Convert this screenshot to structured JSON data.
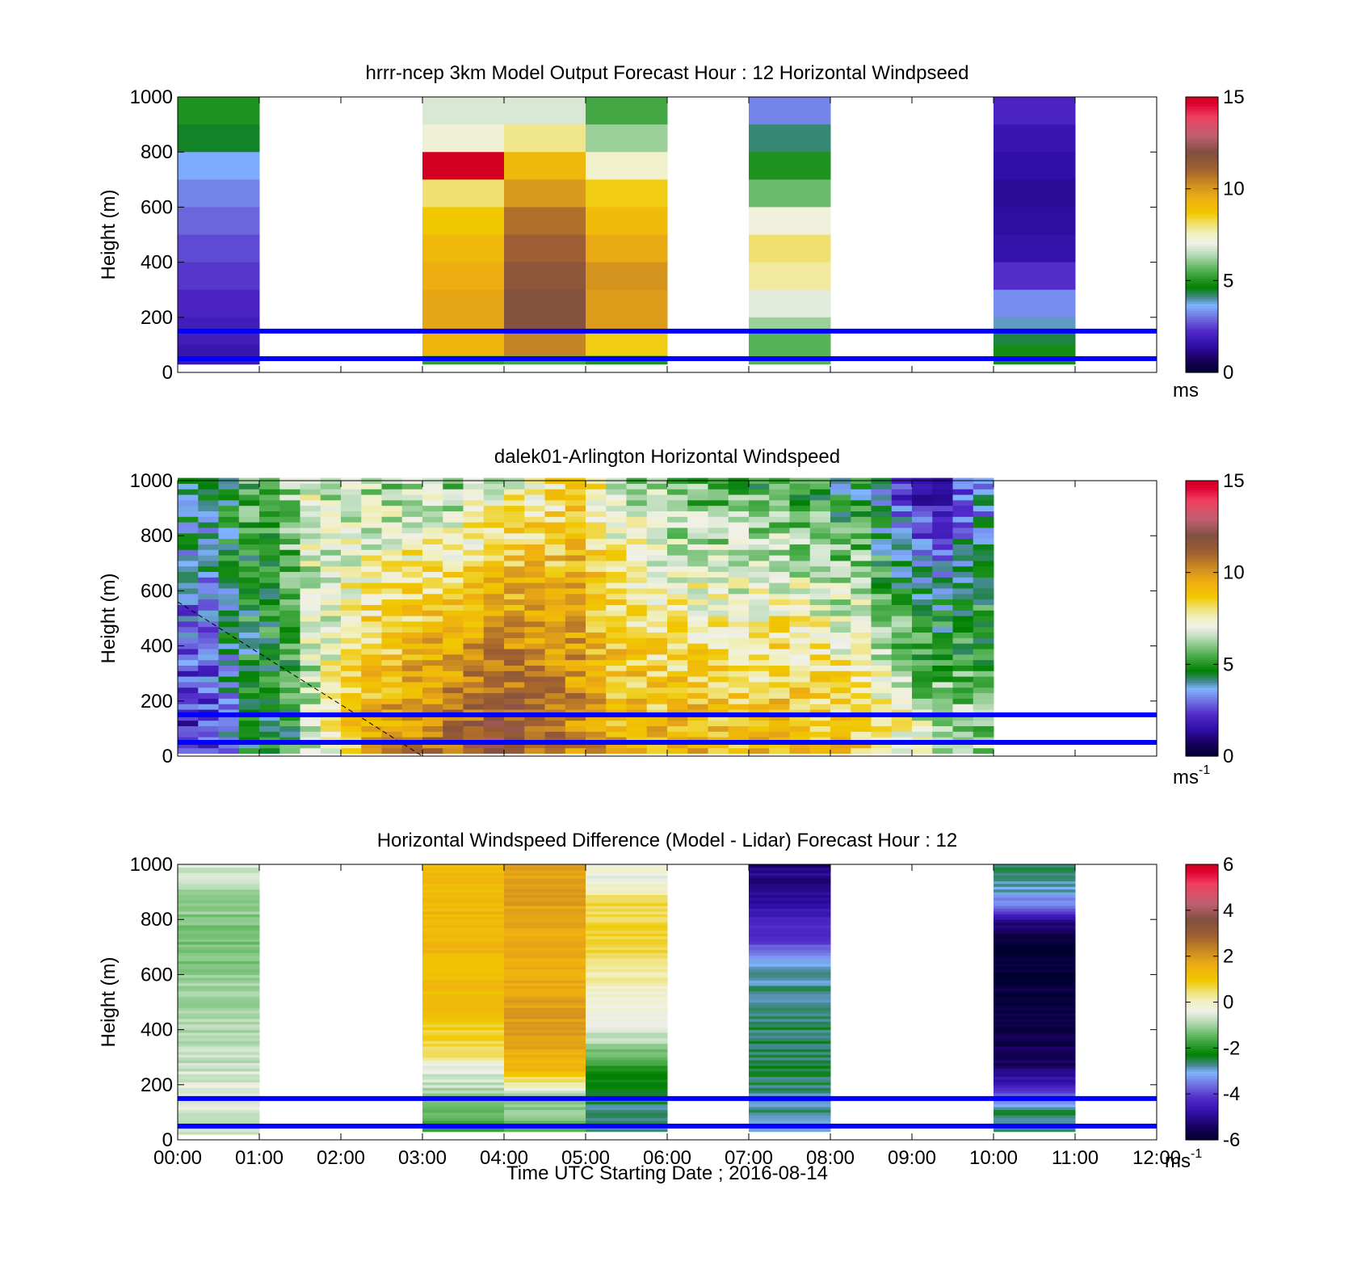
{
  "figure": {
    "x_tick_labels": [
      "00:00",
      "01:00",
      "02:00",
      "03:00",
      "04:00",
      "05:00",
      "06:00",
      "07:00",
      "08:00",
      "09:00",
      "10:00",
      "11:00",
      "12:00"
    ],
    "x_label": "Time UTC  Starting Date ; 2016-08-14",
    "y_label": "Height (m)",
    "y_tick_labels": [
      "0",
      "200",
      "400",
      "600",
      "800",
      "1000"
    ],
    "reference_line_color": "#0000ff"
  },
  "chart_data": [
    {
      "type": "heatmap",
      "title": "hrrr-ncep 3km Model Output   Forecast Hour : 12 Horizontal Windpseed",
      "xlabel": "",
      "ylabel": "Height (m)",
      "xlim": [
        "00:00",
        "12:00"
      ],
      "ylim": [
        0,
        1000
      ],
      "colorbar": {
        "min": 0,
        "max": 15,
        "ticks": [
          "0",
          "5",
          "10",
          "15"
        ],
        "unit": "ms",
        "unit_sup": "",
        "colormap": "windspeed"
      },
      "reference_lines_m": [
        150,
        50
      ],
      "grid": false,
      "columns": [
        {
          "start_hour": 0,
          "end_hour": 1,
          "bottom_m": 30,
          "levels": [
            {
              "top_m": 1000,
              "value": 5.0
            },
            {
              "top_m": 900,
              "value": 4.5
            },
            {
              "top_m": 800,
              "value": 3.6
            },
            {
              "top_m": 700,
              "value": 3.2
            },
            {
              "top_m": 600,
              "value": 2.9
            },
            {
              "top_m": 500,
              "value": 2.6
            },
            {
              "top_m": 400,
              "value": 2.4
            },
            {
              "top_m": 300,
              "value": 2.1
            },
            {
              "top_m": 200,
              "value": 1.9
            },
            {
              "top_m": 100,
              "value": 1.7
            }
          ]
        },
        {
          "start_hour": 3,
          "end_hour": 4,
          "bottom_m": 30,
          "levels": [
            {
              "top_m": 1000,
              "value": 6.8
            },
            {
              "top_m": 900,
              "value": 7.3
            },
            {
              "top_m": 800,
              "value": 14.9
            },
            {
              "top_m": 700,
              "value": 8.1
            },
            {
              "top_m": 600,
              "value": 8.7
            },
            {
              "top_m": 500,
              "value": 9.2
            },
            {
              "top_m": 400,
              "value": 9.5
            },
            {
              "top_m": 300,
              "value": 9.7
            },
            {
              "top_m": 150,
              "value": 9.3
            },
            {
              "top_m": 60,
              "value": 5.2
            }
          ]
        },
        {
          "start_hour": 4,
          "end_hour": 5,
          "bottom_m": 30,
          "levels": [
            {
              "top_m": 1000,
              "value": 6.8
            },
            {
              "top_m": 900,
              "value": 7.9
            },
            {
              "top_m": 800,
              "value": 9.2
            },
            {
              "top_m": 700,
              "value": 10.0
            },
            {
              "top_m": 600,
              "value": 10.8
            },
            {
              "top_m": 500,
              "value": 11.2
            },
            {
              "top_m": 400,
              "value": 11.6
            },
            {
              "top_m": 300,
              "value": 11.9
            },
            {
              "top_m": 150,
              "value": 10.4
            },
            {
              "top_m": 60,
              "value": 5.4
            }
          ]
        },
        {
          "start_hour": 5,
          "end_hour": 6,
          "bottom_m": 30,
          "levels": [
            {
              "top_m": 1000,
              "value": 5.4
            },
            {
              "top_m": 900,
              "value": 6.2
            },
            {
              "top_m": 800,
              "value": 7.4
            },
            {
              "top_m": 700,
              "value": 8.6
            },
            {
              "top_m": 600,
              "value": 9.1
            },
            {
              "top_m": 500,
              "value": 9.6
            },
            {
              "top_m": 400,
              "value": 10.1
            },
            {
              "top_m": 300,
              "value": 9.9
            },
            {
              "top_m": 150,
              "value": 8.6
            },
            {
              "top_m": 60,
              "value": 5.0
            }
          ]
        },
        {
          "start_hour": 7,
          "end_hour": 8,
          "bottom_m": 30,
          "levels": [
            {
              "top_m": 1000,
              "value": 3.2
            },
            {
              "top_m": 900,
              "value": 4.2
            },
            {
              "top_m": 800,
              "value": 5.0
            },
            {
              "top_m": 700,
              "value": 5.8
            },
            {
              "top_m": 600,
              "value": 7.2
            },
            {
              "top_m": 500,
              "value": 8.1
            },
            {
              "top_m": 400,
              "value": 7.8
            },
            {
              "top_m": 300,
              "value": 6.9
            },
            {
              "top_m": 200,
              "value": 6.2
            },
            {
              "top_m": 150,
              "value": 5.6
            }
          ]
        },
        {
          "start_hour": 10,
          "end_hour": 11,
          "bottom_m": 30,
          "levels": [
            {
              "top_m": 1000,
              "value": 2.1
            },
            {
              "top_m": 900,
              "value": 1.7
            },
            {
              "top_m": 800,
              "value": 1.5
            },
            {
              "top_m": 700,
              "value": 1.3
            },
            {
              "top_m": 600,
              "value": 1.4
            },
            {
              "top_m": 500,
              "value": 1.6
            },
            {
              "top_m": 400,
              "value": 2.3
            },
            {
              "top_m": 300,
              "value": 3.3
            },
            {
              "top_m": 200,
              "value": 3.9
            },
            {
              "top_m": 150,
              "value": 4.4
            },
            {
              "top_m": 100,
              "value": 4.9
            }
          ]
        }
      ]
    },
    {
      "type": "heatmap",
      "title": "dalek01-Arlington  Horizontal Windspeed",
      "xlabel": "",
      "ylabel": "Height (m)",
      "xlim": [
        "00:00",
        "12:00"
      ],
      "ylim": [
        0,
        1000
      ],
      "colorbar": {
        "min": 0,
        "max": 15,
        "ticks": [
          "0",
          "5",
          "10",
          "15"
        ],
        "unit": "ms",
        "unit_sup": "-1",
        "colormap": "windspeed"
      },
      "reference_lines_m": [
        150,
        50
      ],
      "grid": false,
      "time_step_hours": 0.25,
      "height_step_m": 20,
      "bottom_m": 10,
      "column_profiles": [
        {
          "bottom": 2.0,
          "top": 4.5
        },
        {
          "bottom": 2.3,
          "top": 4.6
        },
        {
          "bottom": 3.5,
          "top": 5.0
        },
        {
          "bottom": 4.4,
          "top": 5.4
        },
        {
          "bottom": 4.6,
          "top": 5.6
        },
        {
          "bottom": 5.0,
          "top": 6.2
        },
        {
          "bottom": 6.6,
          "top": 6.9
        },
        {
          "bottom": 7.6,
          "top": 6.4
        },
        {
          "bottom": 8.8,
          "top": 6.5
        },
        {
          "bottom": 9.6,
          "top": 6.2
        },
        {
          "bottom": 10.1,
          "top": 6.0
        },
        {
          "bottom": 10.4,
          "top": 6.4
        },
        {
          "bottom": 10.8,
          "top": 6.2
        },
        {
          "bottom": 11.1,
          "top": 6.0
        },
        {
          "bottom": 11.4,
          "top": 6.6
        },
        {
          "bottom": 11.7,
          "top": 6.9
        },
        {
          "bottom": 11.6,
          "top": 7.3
        },
        {
          "bottom": 11.2,
          "top": 7.6
        },
        {
          "bottom": 10.8,
          "top": 7.9
        },
        {
          "bottom": 10.4,
          "top": 8.5
        },
        {
          "bottom": 9.9,
          "top": 7.6
        },
        {
          "bottom": 9.5,
          "top": 6.9
        },
        {
          "bottom": 9.4,
          "top": 6.3
        },
        {
          "bottom": 9.2,
          "top": 6.1
        },
        {
          "bottom": 9.3,
          "top": 5.7
        },
        {
          "bottom": 9.4,
          "top": 5.5
        },
        {
          "bottom": 9.1,
          "top": 5.4
        },
        {
          "bottom": 9.0,
          "top": 5.3
        },
        {
          "bottom": 9.1,
          "top": 5.2
        },
        {
          "bottom": 9.3,
          "top": 5.4
        },
        {
          "bottom": 9.2,
          "top": 5.0
        },
        {
          "bottom": 9.0,
          "top": 4.9
        },
        {
          "bottom": 8.9,
          "top": 4.3
        },
        {
          "bottom": 8.6,
          "top": 4.5
        },
        {
          "bottom": 8.1,
          "top": 3.3
        },
        {
          "bottom": 7.7,
          "top": 2.1
        },
        {
          "bottom": 7.2,
          "top": 1.3
        },
        {
          "bottom": 6.8,
          "top": 1.6
        },
        {
          "bottom": 6.5,
          "top": 2.6
        },
        {
          "bottom": 6.3,
          "top": 3.1
        }
      ],
      "artifact_line": {
        "start": {
          "hour": 0.0,
          "height_m": 560
        },
        "end": {
          "hour": 3.0,
          "height_m": 0
        }
      }
    },
    {
      "type": "heatmap",
      "title": "Horizontal Windspeed Difference (Model - Lidar) Forecast Hour : 12",
      "xlabel": "Time UTC  Starting Date ; 2016-08-14",
      "ylabel": "Height (m)",
      "xlim": [
        "00:00",
        "12:00"
      ],
      "ylim": [
        0,
        1000
      ],
      "colorbar": {
        "min": -6,
        "max": 6,
        "ticks": [
          "-6",
          "-4",
          "-2",
          "0",
          "2",
          "4",
          "6"
        ],
        "unit": "ms",
        "unit_sup": "-1",
        "colormap": "difference"
      },
      "reference_lines_m": [
        150,
        50
      ],
      "grid": false,
      "height_step_m": 10,
      "columns": [
        {
          "start_hour": 0,
          "end_hour": 1,
          "bottom_m": 20,
          "profile": [
            [
              20,
              -0.7
            ],
            [
              150,
              -0.4
            ],
            [
              300,
              -0.8
            ],
            [
              500,
              -1.0
            ],
            [
              700,
              -1.3
            ],
            [
              900,
              -1.0
            ],
            [
              1000,
              -0.5
            ]
          ]
        },
        {
          "start_hour": 3,
          "end_hour": 4,
          "bottom_m": 30,
          "profile": [
            [
              30,
              -2.0
            ],
            [
              150,
              -1.0
            ],
            [
              250,
              -0.5
            ],
            [
              300,
              0.5
            ],
            [
              450,
              1.1
            ],
            [
              700,
              1.4
            ],
            [
              900,
              1.3
            ],
            [
              1000,
              1.2
            ]
          ]
        },
        {
          "start_hour": 4,
          "end_hour": 5,
          "bottom_m": 30,
          "profile": [
            [
              30,
              -1.5
            ],
            [
              150,
              -1.0
            ],
            [
              200,
              0.2
            ],
            [
              250,
              1.3
            ],
            [
              400,
              2.0
            ],
            [
              600,
              1.6
            ],
            [
              800,
              1.8
            ],
            [
              1000,
              1.9
            ]
          ]
        },
        {
          "start_hour": 5,
          "end_hour": 6,
          "bottom_m": 30,
          "profile": [
            [
              30,
              -2.8
            ],
            [
              150,
              -2.6
            ],
            [
              250,
              -2.0
            ],
            [
              350,
              -0.8
            ],
            [
              600,
              0.2
            ],
            [
              700,
              0.8
            ],
            [
              850,
              0.6
            ],
            [
              950,
              -0.3
            ],
            [
              1000,
              -0.2
            ]
          ]
        },
        {
          "start_hour": 7,
          "end_hour": 8,
          "bottom_m": 30,
          "profile": [
            [
              30,
              -2.9
            ],
            [
              250,
              -2.5
            ],
            [
              400,
              -2.6
            ],
            [
              600,
              -2.8
            ],
            [
              680,
              -3.6
            ],
            [
              750,
              -4.2
            ],
            [
              820,
              -4.6
            ],
            [
              900,
              -5.0
            ],
            [
              1000,
              -5.2
            ]
          ]
        },
        {
          "start_hour": 10,
          "end_hour": 11,
          "bottom_m": 30,
          "profile": [
            [
              30,
              -2.8
            ],
            [
              100,
              -2.6
            ],
            [
              150,
              -3.6
            ],
            [
              200,
              -4.5
            ],
            [
              250,
              -5.2
            ],
            [
              270,
              -5.5
            ],
            [
              690,
              -6.0
            ],
            [
              720,
              -5.8
            ],
            [
              800,
              -4.8
            ],
            [
              850,
              -3.6
            ],
            [
              900,
              -2.9
            ],
            [
              1000,
              -2.6
            ]
          ]
        }
      ]
    }
  ]
}
